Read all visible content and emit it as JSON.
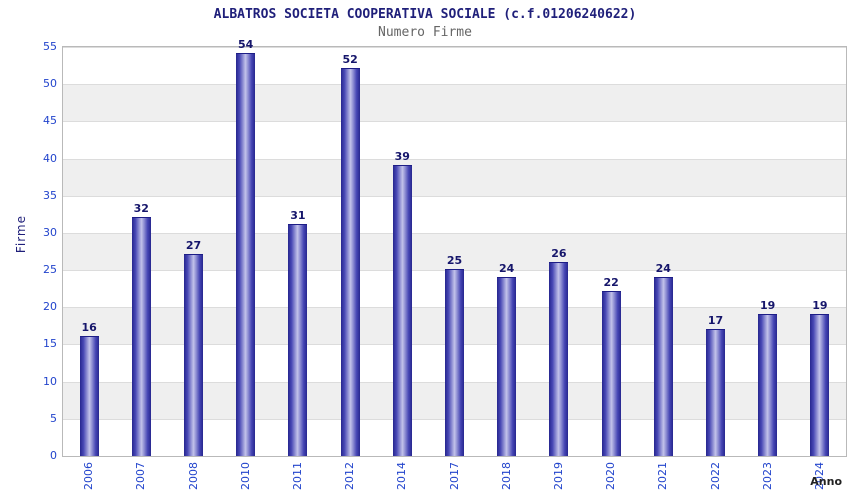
{
  "chart_data": {
    "type": "bar",
    "title": "ALBATROS SOCIETA COOPERATIVA SOCIALE (c.f.01206240622)",
    "subtitle": "Numero Firme",
    "xlabel": "Anno",
    "ylabel": "Firme",
    "categories": [
      "2006",
      "2007",
      "2008",
      "2010",
      "2011",
      "2012",
      "2014",
      "2017",
      "2018",
      "2019",
      "2020",
      "2021",
      "2022",
      "2023",
      "2024"
    ],
    "values": [
      16,
      32,
      27,
      54,
      31,
      52,
      39,
      25,
      24,
      26,
      22,
      24,
      17,
      19,
      19
    ],
    "ylim": [
      0,
      55
    ],
    "ytick_step": 5,
    "grid": true,
    "legend": "none",
    "colors": {
      "bar_edge": "#26268f",
      "bar_mid": "#4646b4",
      "bar_center": "#c3c3ea",
      "tick_label": "#2244cc",
      "title": "#1f1f7a",
      "subtitle": "#666666",
      "value_label": "#16166b",
      "band": "#efefef",
      "gridline": "#dcdcdc",
      "plot_border": "#b9b9b9"
    }
  }
}
